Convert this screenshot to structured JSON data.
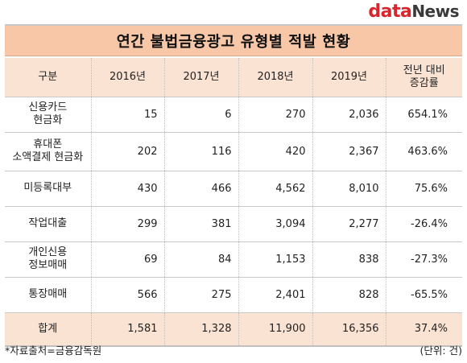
{
  "logo": {
    "part1": "data",
    "part2": "News"
  },
  "title": "연간 불법금융광고 유형별 적발 현황",
  "table": {
    "headers": [
      "구분",
      "2016년",
      "2017년",
      "2018년",
      "2019년",
      "전년 대비\n증감률"
    ],
    "rows": [
      {
        "label": "신용카드\n현금화",
        "v2016": "15",
        "v2017": "6",
        "v2018": "270",
        "v2019": "2,036",
        "rate": "654.1%"
      },
      {
        "label": "휴대폰\n소액결제 현금화",
        "v2016": "202",
        "v2017": "116",
        "v2018": "420",
        "v2019": "2,367",
        "rate": "463.6%"
      },
      {
        "label": "미등록대부",
        "v2016": "430",
        "v2017": "466",
        "v2018": "4,562",
        "v2019": "8,010",
        "rate": "75.6%"
      },
      {
        "label": "작업대출",
        "v2016": "299",
        "v2017": "381",
        "v2018": "3,094",
        "v2019": "2,277",
        "rate": "-26.4%"
      },
      {
        "label": "개인신용\n정보매매",
        "v2016": "69",
        "v2017": "84",
        "v2018": "1,153",
        "v2019": "838",
        "rate": "-27.3%"
      },
      {
        "label": "통장매매",
        "v2016": "566",
        "v2017": "275",
        "v2018": "2,401",
        "v2019": "828",
        "rate": "-65.5%"
      }
    ],
    "total": {
      "label": "합계",
      "v2016": "1,581",
      "v2017": "1,328",
      "v2018": "11,900",
      "v2019": "16,356",
      "rate": "37.4%"
    }
  },
  "footer": {
    "source": "*자료출처=금융감독원",
    "unit": "(단위: 건)"
  },
  "colors": {
    "title_bg": "#f7c7a7",
    "header_bg": "#fbe3d3",
    "logo_red": "#d7262e"
  }
}
